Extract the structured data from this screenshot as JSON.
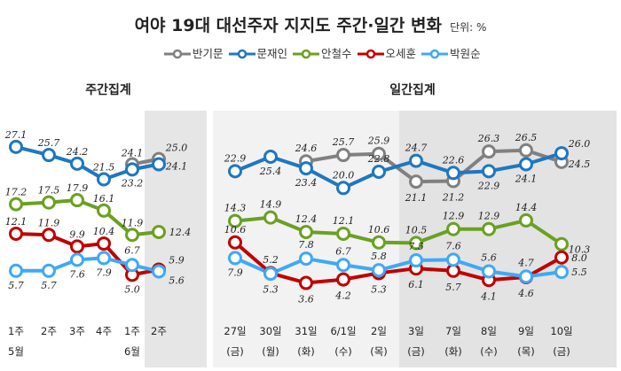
{
  "title": "여야 19대 대선주자 지지도 주간·일간 변화",
  "unit_label": "단위: %",
  "legend": [
    {
      "name": "반기문",
      "color": "#808080"
    },
    {
      "name": "문재인",
      "color": "#1f77c0"
    },
    {
      "name": "안철수",
      "color": "#6aa121"
    },
    {
      "name": "오세훈",
      "color": "#c00000"
    },
    {
      "name": "박원순",
      "color": "#3fa9f5"
    }
  ],
  "chart_data": [
    {
      "type": "line",
      "title": "주간집계",
      "categories": [
        "1주",
        "2주",
        "3주",
        "4주",
        "1주",
        "2주"
      ],
      "month_labels": [
        {
          "index": 0,
          "label": "5월"
        },
        {
          "index": 4,
          "label": "6월"
        }
      ],
      "series": [
        {
          "name": "반기문",
          "values": [
            null,
            null,
            null,
            null,
            24.1,
            25.0
          ]
        },
        {
          "name": "문재인",
          "values": [
            27.1,
            25.7,
            24.2,
            21.5,
            23.2,
            24.1
          ]
        },
        {
          "name": "안철수",
          "values": [
            17.2,
            17.5,
            17.9,
            16.1,
            11.9,
            12.4
          ]
        },
        {
          "name": "오세훈",
          "values": [
            12.1,
            11.9,
            9.9,
            10.4,
            5.0,
            5.9
          ]
        },
        {
          "name": "박원순",
          "values": [
            5.7,
            5.7,
            7.6,
            7.9,
            6.7,
            5.6
          ]
        }
      ]
    },
    {
      "type": "line",
      "title": "일간집계",
      "categories": [
        "27일",
        "30일",
        "31일",
        "6/1일",
        "2일",
        "3일",
        "7일",
        "8일",
        "9일",
        "10일"
      ],
      "weekdays": [
        "(금)",
        "(월)",
        "(화)",
        "(수)",
        "(목)",
        "(금)",
        "(화)",
        "(수)",
        "(목)",
        "(금)"
      ],
      "series": [
        {
          "name": "반기문",
          "values": [
            null,
            null,
            24.6,
            25.7,
            25.9,
            21.1,
            21.2,
            26.3,
            26.5,
            24.5
          ]
        },
        {
          "name": "문재인",
          "values": [
            22.9,
            25.4,
            23.4,
            20.0,
            22.8,
            24.7,
            22.6,
            22.9,
            24.1,
            26.0
          ]
        },
        {
          "name": "안철수",
          "values": [
            14.3,
            14.9,
            12.4,
            12.1,
            10.6,
            10.5,
            12.9,
            12.9,
            14.4,
            10.3
          ]
        },
        {
          "name": "오세훈",
          "values": [
            10.6,
            5.3,
            3.6,
            4.2,
            5.3,
            6.1,
            5.7,
            4.1,
            4.6,
            8.0
          ]
        },
        {
          "name": "박원순",
          "values": [
            7.9,
            5.2,
            7.8,
            6.7,
            5.8,
            7.5,
            7.6,
            5.6,
            4.7,
            5.5
          ]
        }
      ]
    }
  ],
  "display_labels": {
    "weekly": {
      "반기문": [
        "",
        "",
        "",
        "",
        "24.1",
        "25.0"
      ],
      "문재인": [
        "27.1",
        "25.7",
        "24.2",
        "21.5",
        "23.2",
        "24.1"
      ],
      "안철수": [
        "17.2",
        "17.5",
        "17.9",
        "16.1",
        "11.9",
        "12.4"
      ],
      "오세훈": [
        "12.1",
        "11.9",
        "9.9",
        "10.4",
        "5.0",
        "5.9"
      ],
      "박원순": [
        "5.7",
        "5.7",
        "7.6",
        "7.9",
        "6.7",
        "5.6"
      ]
    },
    "daily": {
      "반기문": [
        "",
        "",
        "24.6",
        "25.7",
        "25.9",
        "21.1",
        "21.2",
        "26.3",
        "26.5",
        "24.5"
      ],
      "문재인": [
        "22.9",
        "25.4",
        "23.4",
        "20.0",
        "22.8",
        "24.7",
        "22.6",
        "22.9",
        "24.1",
        "26.0"
      ],
      "안철수": [
        "14.3",
        "14.9",
        "12.4",
        "12.1",
        "10.6",
        "10.5",
        "12.9",
        "12.9",
        "14.4",
        "10.3"
      ],
      "오세훈": [
        "10.6",
        "5.3",
        "3.6",
        "4.2",
        "5.3",
        "6.1",
        "5.7",
        "4.1",
        "4.6",
        "8.0"
      ],
      "박원순": [
        "7.9",
        "5.2",
        "7.8",
        "6.7",
        "5.8",
        "7.5",
        "7.6",
        "5.6",
        "4.7",
        "5.5"
      ]
    }
  }
}
